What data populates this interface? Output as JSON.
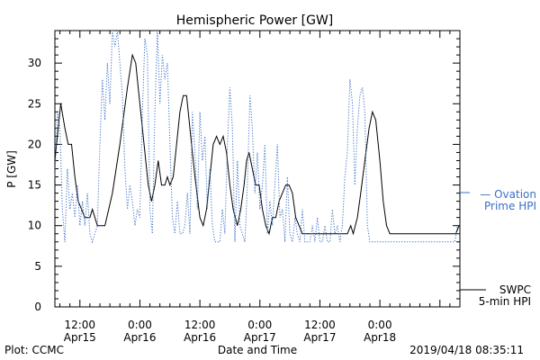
{
  "chart_data": {
    "type": "line",
    "title": "Hemispheric Power [GW]",
    "ylabel": "P [GW]",
    "xlabel": "Date and Time",
    "ylim": [
      0,
      34
    ],
    "yticks": [
      0,
      5,
      10,
      15,
      20,
      25,
      30
    ],
    "xlim": [
      "2019-04-15 07:00",
      "2019-04-18 16:00"
    ],
    "xticks": [
      {
        "t": "2019-04-15 12:00",
        "label": [
          "12:00",
          "Apr15"
        ]
      },
      {
        "t": "2019-04-16 00:00",
        "label": [
          "0:00",
          "Apr16"
        ]
      },
      {
        "t": "2019-04-16 12:00",
        "label": [
          "12:00",
          "Apr16"
        ]
      },
      {
        "t": "2019-04-17 00:00",
        "label": [
          "0:00",
          "Apr17"
        ]
      },
      {
        "t": "2019-04-17 12:00",
        "label": [
          "12:00",
          "Apr17"
        ]
      },
      {
        "t": "2019-04-18 00:00",
        "label": [
          "0:00",
          "Apr18"
        ]
      }
    ],
    "series": [
      {
        "name": "SWPC 5-min HPI",
        "color": "#000000",
        "style": "solid",
        "points": [
          [
            "2019-04-15 07:00",
            18
          ],
          [
            "2019-04-15 07:40",
            22
          ],
          [
            "2019-04-15 08:10",
            25
          ],
          [
            "2019-04-15 09:00",
            22
          ],
          [
            "2019-04-15 09:40",
            20
          ],
          [
            "2019-04-15 10:20",
            20
          ],
          [
            "2019-04-15 11:00",
            16
          ],
          [
            "2019-04-15 11:40",
            13
          ],
          [
            "2019-04-15 12:20",
            12
          ],
          [
            "2019-04-15 13:00",
            11
          ],
          [
            "2019-04-15 14:00",
            11
          ],
          [
            "2019-04-15 14:30",
            12
          ],
          [
            "2019-04-15 15:30",
            10
          ],
          [
            "2019-04-15 17:00",
            10
          ],
          [
            "2019-04-15 18:30",
            14
          ],
          [
            "2019-04-15 20:00",
            20
          ],
          [
            "2019-04-15 21:30",
            27
          ],
          [
            "2019-04-15 22:30",
            31
          ],
          [
            "2019-04-15 23:10",
            30
          ],
          [
            "2019-04-16 00:00",
            25
          ],
          [
            "2019-04-16 01:00",
            19
          ],
          [
            "2019-04-16 01:40",
            15
          ],
          [
            "2019-04-16 02:20",
            13
          ],
          [
            "2019-04-16 03:00",
            15
          ],
          [
            "2019-04-16 03:40",
            18
          ],
          [
            "2019-04-16 04:20",
            15
          ],
          [
            "2019-04-16 05:00",
            15
          ],
          [
            "2019-04-16 05:30",
            16
          ],
          [
            "2019-04-16 06:00",
            15
          ],
          [
            "2019-04-16 06:40",
            16
          ],
          [
            "2019-04-16 07:20",
            20
          ],
          [
            "2019-04-16 08:00",
            24
          ],
          [
            "2019-04-16 08:40",
            26
          ],
          [
            "2019-04-16 09:20",
            26
          ],
          [
            "2019-04-16 10:00",
            22
          ],
          [
            "2019-04-16 11:00",
            16
          ],
          [
            "2019-04-16 12:00",
            11
          ],
          [
            "2019-04-16 12:40",
            10
          ],
          [
            "2019-04-16 13:20",
            12
          ],
          [
            "2019-04-16 14:00",
            16
          ],
          [
            "2019-04-16 14:40",
            20
          ],
          [
            "2019-04-16 15:20",
            21
          ],
          [
            "2019-04-16 16:00",
            20
          ],
          [
            "2019-04-16 16:40",
            21
          ],
          [
            "2019-04-16 17:20",
            19
          ],
          [
            "2019-04-16 18:00",
            15
          ],
          [
            "2019-04-16 18:40",
            12
          ],
          [
            "2019-04-16 19:30",
            10
          ],
          [
            "2019-04-16 20:10",
            12
          ],
          [
            "2019-04-16 20:50",
            15
          ],
          [
            "2019-04-16 21:20",
            18
          ],
          [
            "2019-04-16 21:50",
            19
          ],
          [
            "2019-04-16 22:30",
            17
          ],
          [
            "2019-04-16 23:10",
            15
          ],
          [
            "2019-04-16 23:50",
            15
          ],
          [
            "2019-04-17 00:30",
            12
          ],
          [
            "2019-04-17 01:10",
            10
          ],
          [
            "2019-04-17 01:50",
            9
          ],
          [
            "2019-04-17 02:30",
            11
          ],
          [
            "2019-04-17 03:10",
            11
          ],
          [
            "2019-04-17 03:50",
            13
          ],
          [
            "2019-04-17 04:30",
            14
          ],
          [
            "2019-04-17 05:10",
            15
          ],
          [
            "2019-04-17 05:50",
            15
          ],
          [
            "2019-04-17 06:30",
            14
          ],
          [
            "2019-04-17 07:10",
            11
          ],
          [
            "2019-04-17 07:50",
            10
          ],
          [
            "2019-04-17 08:30",
            9
          ],
          [
            "2019-04-17 17:30",
            9
          ],
          [
            "2019-04-17 18:10",
            10
          ],
          [
            "2019-04-17 18:40",
            9
          ],
          [
            "2019-04-17 19:30",
            11
          ],
          [
            "2019-04-17 20:10",
            14
          ],
          [
            "2019-04-17 21:00",
            18
          ],
          [
            "2019-04-17 21:50",
            22
          ],
          [
            "2019-04-17 22:30",
            24
          ],
          [
            "2019-04-17 23:10",
            23
          ],
          [
            "2019-04-18 00:00",
            18
          ],
          [
            "2019-04-18 00:40",
            13
          ],
          [
            "2019-04-18 01:20",
            10
          ],
          [
            "2019-04-18 02:00",
            9
          ],
          [
            "2019-04-18 15:10",
            9
          ],
          [
            "2019-04-18 15:50",
            10
          ]
        ]
      },
      {
        "name": "Ovation Prime HPI",
        "color": "#3b6fc4",
        "style": "dotted",
        "points": [
          [
            "2019-04-15 07:00",
            16
          ],
          [
            "2019-04-15 07:30",
            24
          ],
          [
            "2019-04-15 08:00",
            22
          ],
          [
            "2019-04-15 08:30",
            12
          ],
          [
            "2019-04-15 09:00",
            8
          ],
          [
            "2019-04-15 09:30",
            17
          ],
          [
            "2019-04-15 10:00",
            12
          ],
          [
            "2019-04-15 10:30",
            14
          ],
          [
            "2019-04-15 11:00",
            11
          ],
          [
            "2019-04-15 11:30",
            15
          ],
          [
            "2019-04-15 12:00",
            10
          ],
          [
            "2019-04-15 12:30",
            13
          ],
          [
            "2019-04-15 13:00",
            10
          ],
          [
            "2019-04-15 13:30",
            14
          ],
          [
            "2019-04-15 14:00",
            9
          ],
          [
            "2019-04-15 14:30",
            8
          ],
          [
            "2019-04-15 15:00",
            9
          ],
          [
            "2019-04-15 15:30",
            10
          ],
          [
            "2019-04-15 16:00",
            20
          ],
          [
            "2019-04-15 16:30",
            28
          ],
          [
            "2019-04-15 17:00",
            23
          ],
          [
            "2019-04-15 17:30",
            30
          ],
          [
            "2019-04-15 18:00",
            25
          ],
          [
            "2019-04-15 18:30",
            34
          ],
          [
            "2019-04-15 19:00",
            32
          ],
          [
            "2019-04-15 19:30",
            34
          ],
          [
            "2019-04-15 20:00",
            30
          ],
          [
            "2019-04-15 20:30",
            26
          ],
          [
            "2019-04-15 21:00",
            17
          ],
          [
            "2019-04-15 21:30",
            12
          ],
          [
            "2019-04-15 22:00",
            15
          ],
          [
            "2019-04-15 22:30",
            13
          ],
          [
            "2019-04-15 23:00",
            10
          ],
          [
            "2019-04-15 23:30",
            12
          ],
          [
            "2019-04-16 00:00",
            11
          ],
          [
            "2019-04-16 00:30",
            24
          ],
          [
            "2019-04-16 01:00",
            33
          ],
          [
            "2019-04-16 01:30",
            31
          ],
          [
            "2019-04-16 02:00",
            12
          ],
          [
            "2019-04-16 02:30",
            9
          ],
          [
            "2019-04-16 03:00",
            24
          ],
          [
            "2019-04-16 03:30",
            34
          ],
          [
            "2019-04-16 04:00",
            25
          ],
          [
            "2019-04-16 04:30",
            31
          ],
          [
            "2019-04-16 05:00",
            28
          ],
          [
            "2019-04-16 05:30",
            30
          ],
          [
            "2019-04-16 06:00",
            20
          ],
          [
            "2019-04-16 06:30",
            11
          ],
          [
            "2019-04-16 07:00",
            9
          ],
          [
            "2019-04-16 07:30",
            13
          ],
          [
            "2019-04-16 08:00",
            9
          ],
          [
            "2019-04-16 08:30",
            9
          ],
          [
            "2019-04-16 09:00",
            10
          ],
          [
            "2019-04-16 09:30",
            14
          ],
          [
            "2019-04-16 10:00",
            9
          ],
          [
            "2019-04-16 10:30",
            24
          ],
          [
            "2019-04-16 11:00",
            19
          ],
          [
            "2019-04-16 11:30",
            12
          ],
          [
            "2019-04-16 12:00",
            24
          ],
          [
            "2019-04-16 12:30",
            18
          ],
          [
            "2019-04-16 13:00",
            21
          ],
          [
            "2019-04-16 13:30",
            12
          ],
          [
            "2019-04-16 14:00",
            17
          ],
          [
            "2019-04-16 14:30",
            10
          ],
          [
            "2019-04-16 15:00",
            8
          ],
          [
            "2019-04-16 16:00",
            8
          ],
          [
            "2019-04-16 16:30",
            12
          ],
          [
            "2019-04-16 17:00",
            9
          ],
          [
            "2019-04-16 17:30",
            20
          ],
          [
            "2019-04-16 18:00",
            27
          ],
          [
            "2019-04-16 18:30",
            22
          ],
          [
            "2019-04-16 19:00",
            8
          ],
          [
            "2019-04-16 19:30",
            18
          ],
          [
            "2019-04-16 20:00",
            10
          ],
          [
            "2019-04-16 20:30",
            9
          ],
          [
            "2019-04-16 21:00",
            8
          ],
          [
            "2019-04-16 21:30",
            15
          ],
          [
            "2019-04-16 22:00",
            26
          ],
          [
            "2019-04-16 22:30",
            22
          ],
          [
            "2019-04-16 23:00",
            14
          ],
          [
            "2019-04-16 23:30",
            19
          ],
          [
            "2019-04-17 00:00",
            12
          ],
          [
            "2019-04-17 00:30",
            15
          ],
          [
            "2019-04-17 01:00",
            20
          ],
          [
            "2019-04-17 01:30",
            9
          ],
          [
            "2019-04-17 02:00",
            13
          ],
          [
            "2019-04-17 02:30",
            10
          ],
          [
            "2019-04-17 03:00",
            15
          ],
          [
            "2019-04-17 03:30",
            20
          ],
          [
            "2019-04-17 04:00",
            11
          ],
          [
            "2019-04-17 04:30",
            12
          ],
          [
            "2019-04-17 05:00",
            8
          ],
          [
            "2019-04-17 05:30",
            16
          ],
          [
            "2019-04-17 06:00",
            9
          ],
          [
            "2019-04-17 06:30",
            8
          ],
          [
            "2019-04-17 07:00",
            11
          ],
          [
            "2019-04-17 07:30",
            9
          ],
          [
            "2019-04-17 08:00",
            8
          ],
          [
            "2019-04-17 08:30",
            12
          ],
          [
            "2019-04-17 09:00",
            8
          ],
          [
            "2019-04-17 10:00",
            8
          ],
          [
            "2019-04-17 10:30",
            10
          ],
          [
            "2019-04-17 11:00",
            8
          ],
          [
            "2019-04-17 11:30",
            11
          ],
          [
            "2019-04-17 12:00",
            8
          ],
          [
            "2019-04-17 12:30",
            8
          ],
          [
            "2019-04-17 13:00",
            10
          ],
          [
            "2019-04-17 13:30",
            8
          ],
          [
            "2019-04-17 14:00",
            8
          ],
          [
            "2019-04-17 14:30",
            12
          ],
          [
            "2019-04-17 15:00",
            9
          ],
          [
            "2019-04-17 15:30",
            10
          ],
          [
            "2019-04-17 16:00",
            8
          ],
          [
            "2019-04-17 16:30",
            10
          ],
          [
            "2019-04-17 17:00",
            16
          ],
          [
            "2019-04-17 17:30",
            19
          ],
          [
            "2019-04-17 18:00",
            28
          ],
          [
            "2019-04-17 18:30",
            25
          ],
          [
            "2019-04-17 19:00",
            15
          ],
          [
            "2019-04-17 19:30",
            22
          ],
          [
            "2019-04-17 20:00",
            26
          ],
          [
            "2019-04-17 20:30",
            27
          ],
          [
            "2019-04-17 21:00",
            24
          ],
          [
            "2019-04-17 21:30",
            10
          ],
          [
            "2019-04-17 22:00",
            8
          ],
          [
            "2019-04-18 02:00",
            8
          ],
          [
            "2019-04-18 03:00",
            8
          ],
          [
            "2019-04-18 15:00",
            8
          ],
          [
            "2019-04-18 15:30",
            10
          ]
        ]
      }
    ],
    "legend": [
      {
        "text": [
          "— Ovation",
          "Prime HPI"
        ],
        "color": "#3b6fc4",
        "position": "right-middle"
      },
      {
        "text": [
          "SWPC",
          "5-min HPI"
        ],
        "color": "#000000",
        "position": "right-bottom"
      }
    ],
    "footer": {
      "left": "Plot: CCMC",
      "right": "2019/04/18 08:35:11"
    }
  }
}
